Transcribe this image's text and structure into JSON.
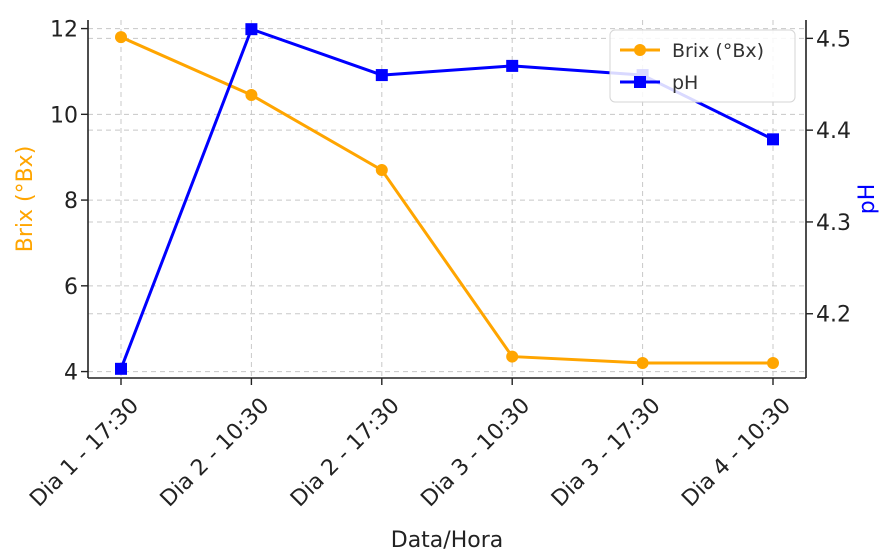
{
  "chart_data": {
    "type": "line",
    "title": "",
    "xlabel": "Data/Hora",
    "categories": [
      "Dia 1 - 17:30",
      "Dia 2 - 10:30",
      "Dia 2 - 17:30",
      "Dia 3 - 10:30",
      "Dia 3 - 17:30",
      "Dia 4 - 10:30"
    ],
    "series": [
      {
        "name": "Brix (°Bx)",
        "axis": "left",
        "color": "#FFA500",
        "marker": "circle",
        "values": [
          11.8,
          10.45,
          8.7,
          4.35,
          4.2,
          4.2
        ]
      },
      {
        "name": "pH",
        "axis": "right",
        "color": "#0000FF",
        "marker": "square",
        "values": [
          4.14,
          4.51,
          4.46,
          4.47,
          4.46,
          4.39
        ]
      }
    ],
    "y_left": {
      "label": "Brix (°Bx)",
      "color": "#FFA500",
      "ticks": [
        "4",
        "6",
        "8",
        "10",
        "12"
      ],
      "tick_values": [
        4,
        6,
        8,
        10,
        12
      ],
      "ylim": [
        3.85,
        12.2
      ]
    },
    "y_right": {
      "label": "pH",
      "color": "#0000FF",
      "ticks": [
        "4.2",
        "4.3",
        "4.4",
        "4.5"
      ],
      "tick_values": [
        4.2,
        4.3,
        4.4,
        4.5
      ],
      "ylim": [
        4.13,
        4.52
      ]
    },
    "grid": true,
    "legend_position": "top-right"
  }
}
